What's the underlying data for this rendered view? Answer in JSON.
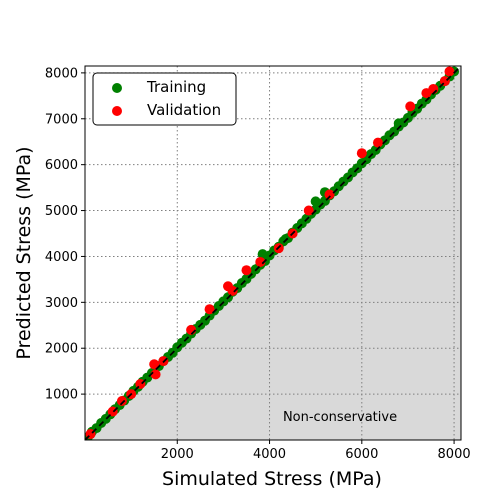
{
  "chart_data": {
    "type": "scatter",
    "title": "",
    "xlabel": "Simulated Stress (MPa)",
    "ylabel": "Predicted Stress (MPa)",
    "xlim": [
      0,
      8150
    ],
    "ylim": [
      0,
      8150
    ],
    "xticks": [
      2000,
      4000,
      6000,
      8000
    ],
    "yticks": [
      1000,
      2000,
      3000,
      4000,
      5000,
      6000,
      7000,
      8000
    ],
    "grid": true,
    "legend_position": "top-left",
    "annotation": "Non-conservative",
    "shaded_region": "below diagonal",
    "reference_line": "y = x (dashed)",
    "colors": {
      "training": "#008000",
      "validation": "#ff0000",
      "shade": "#d9d9d9",
      "grid": "#7f7f7f",
      "reference_line": "#000000"
    },
    "series": [
      {
        "name": "Training",
        "color": "#008000",
        "points": [
          [
            60,
            60
          ],
          [
            150,
            180
          ],
          [
            250,
            260
          ],
          [
            350,
            370
          ],
          [
            450,
            460
          ],
          [
            550,
            560
          ],
          [
            650,
            670
          ],
          [
            750,
            760
          ],
          [
            850,
            860
          ],
          [
            950,
            960
          ],
          [
            1050,
            1070
          ],
          [
            1150,
            1160
          ],
          [
            1250,
            1270
          ],
          [
            1350,
            1360
          ],
          [
            1450,
            1460
          ],
          [
            1600,
            1610
          ],
          [
            1700,
            1720
          ],
          [
            1800,
            1810
          ],
          [
            1900,
            1900
          ],
          [
            2000,
            2020
          ],
          [
            2100,
            2120
          ],
          [
            2200,
            2210
          ],
          [
            2300,
            2320
          ],
          [
            2400,
            2420
          ],
          [
            2500,
            2510
          ],
          [
            2600,
            2600
          ],
          [
            2700,
            2710
          ],
          [
            2800,
            2820
          ],
          [
            2900,
            2920
          ],
          [
            3000,
            3020
          ],
          [
            3100,
            3110
          ],
          [
            3200,
            3230
          ],
          [
            3300,
            3310
          ],
          [
            3400,
            3420
          ],
          [
            3500,
            3510
          ],
          [
            3600,
            3620
          ],
          [
            3700,
            3720
          ],
          [
            3800,
            3820
          ],
          [
            3900,
            3900
          ],
          [
            4000,
            4020
          ],
          [
            4100,
            4130
          ],
          [
            4200,
            4210
          ],
          [
            4300,
            4330
          ],
          [
            4400,
            4400
          ],
          [
            4500,
            4520
          ],
          [
            4600,
            4620
          ],
          [
            4700,
            4720
          ],
          [
            4800,
            4820
          ],
          [
            4900,
            4930
          ],
          [
            5000,
            5020
          ],
          [
            5100,
            5130
          ],
          [
            5200,
            5210
          ],
          [
            5300,
            5330
          ],
          [
            5400,
            5420
          ],
          [
            5500,
            5530
          ],
          [
            5600,
            5630
          ],
          [
            5700,
            5720
          ],
          [
            5800,
            5830
          ],
          [
            5900,
            5920
          ],
          [
            6000,
            6030
          ],
          [
            6100,
            6120
          ],
          [
            6200,
            6230
          ],
          [
            6300,
            6320
          ],
          [
            6400,
            6440
          ],
          [
            6500,
            6530
          ],
          [
            6600,
            6640
          ],
          [
            6700,
            6720
          ],
          [
            6800,
            6830
          ],
          [
            6900,
            6920
          ],
          [
            7000,
            7020
          ],
          [
            7100,
            7130
          ],
          [
            7200,
            7220
          ],
          [
            7300,
            7330
          ],
          [
            7400,
            7420
          ],
          [
            7500,
            7530
          ],
          [
            7600,
            7630
          ],
          [
            7700,
            7720
          ],
          [
            7800,
            7820
          ],
          [
            7900,
            7920
          ],
          [
            8000,
            8030
          ],
          [
            3850,
            4050
          ],
          [
            4350,
            4380
          ],
          [
            5000,
            5200
          ],
          [
            5200,
            5400
          ],
          [
            6800,
            6900
          ],
          [
            7100,
            7150
          ]
        ]
      },
      {
        "name": "Validation",
        "color": "#ff0000",
        "points": [
          [
            120,
            130
          ],
          [
            600,
            620
          ],
          [
            800,
            850
          ],
          [
            1200,
            1220
          ],
          [
            1500,
            1650
          ],
          [
            1530,
            1430
          ],
          [
            1700,
            1720
          ],
          [
            2300,
            2400
          ],
          [
            2700,
            2850
          ],
          [
            3100,
            3350
          ],
          [
            3200,
            3250
          ],
          [
            3500,
            3700
          ],
          [
            3800,
            3880
          ],
          [
            4200,
            4180
          ],
          [
            4500,
            4500
          ],
          [
            4850,
            5000
          ],
          [
            5300,
            5350
          ],
          [
            6000,
            6250
          ],
          [
            6350,
            6480
          ],
          [
            7050,
            7270
          ],
          [
            7400,
            7560
          ],
          [
            7550,
            7650
          ],
          [
            7800,
            7820
          ],
          [
            7900,
            8030
          ],
          [
            1000,
            1000
          ]
        ]
      }
    ]
  }
}
